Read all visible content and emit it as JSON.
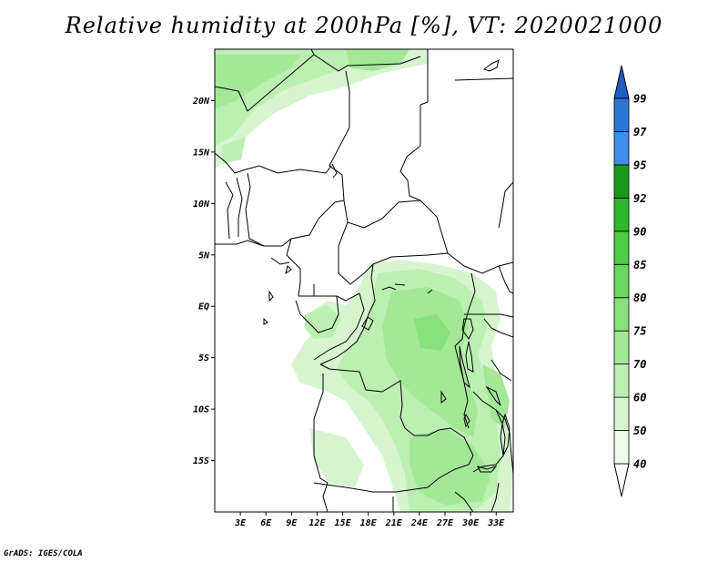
{
  "title": "Relative humidity at 200hPa [%], VT: 2020021000",
  "credit": "GrADS: IGES/COLA",
  "map": {
    "lat_ticks": [
      "20N",
      "15N",
      "10N",
      "5N",
      "EQ",
      "5S",
      "10S",
      "15S"
    ],
    "lon_ticks": [
      "3E",
      "6E",
      "9E",
      "12E",
      "15E",
      "18E",
      "21E",
      "24E",
      "27E",
      "30E",
      "33E"
    ],
    "lat_range": [
      -20,
      25
    ],
    "lon_range": [
      0,
      35
    ]
  },
  "colorbar": {
    "labels": [
      "40",
      "50",
      "60",
      "70",
      "75",
      "80",
      "85",
      "90",
      "92",
      "95",
      "97",
      "99"
    ],
    "colors": [
      "#eefaea",
      "#d6f5cf",
      "#bcefb2",
      "#a3e896",
      "#87e07a",
      "#69d75e",
      "#4ccb45",
      "#2eb82c",
      "#1a9a1a",
      "#3f8fe8",
      "#2a77d6",
      "#1c5ec4"
    ]
  }
}
